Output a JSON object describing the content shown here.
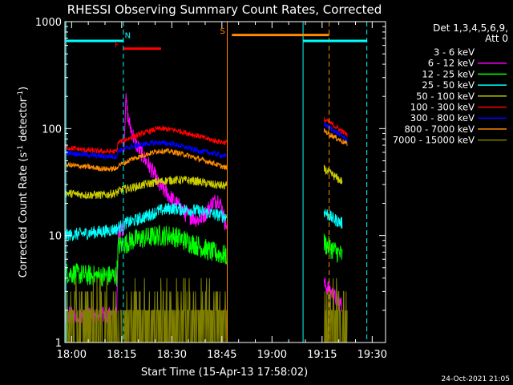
{
  "chart_data": {
    "type": "line",
    "title": "RHESSI Observing Summary Count Rates, Corrected",
    "xlabel": "Start Time (15-Apr-13 17:58:02)",
    "ylabel_main": "Corrected Count Rate (s",
    "ylabel_sup1": "-1",
    "ylabel_mid": " detector",
    "ylabel_sup2": "-1",
    "ylabel_end": ")",
    "footer": "24-Oct-2021 21:05",
    "x_axis": {
      "start_minutes": 0,
      "end_minutes": 96,
      "ticks": [
        {
          "m": 2,
          "label": "18:00"
        },
        {
          "m": 17,
          "label": "18:15"
        },
        {
          "m": 32,
          "label": "18:30"
        },
        {
          "m": 47,
          "label": "18:45"
        },
        {
          "m": 62,
          "label": "19:00"
        },
        {
          "m": 77,
          "label": "19:15"
        },
        {
          "m": 92,
          "label": "19:30"
        }
      ]
    },
    "y_axis": {
      "scale": "log",
      "ylim": [
        1,
        1000
      ],
      "ticks": [
        {
          "v": 1,
          "label": "1"
        },
        {
          "v": 10,
          "label": "10"
        },
        {
          "v": 100,
          "label": "100"
        },
        {
          "v": 1000,
          "label": "1000"
        }
      ]
    },
    "legend": {
      "title_line1": "Det 1,3,4,5,6,9,",
      "title_line2": "Att 0",
      "placement": "top-right outside plot"
    },
    "data_gaps": [
      [
        17.5,
        17.6
      ],
      [
        48.5,
        77.5
      ]
    ],
    "series": [
      {
        "name": "3 - 6 keV",
        "color": "#000000",
        "jitter": 0.05,
        "points": [
          [
            15.5,
            2.5
          ],
          [
            17.5,
            2.5
          ],
          [
            17.6,
            60
          ],
          [
            18.2,
            215
          ],
          [
            19,
            150
          ],
          [
            21,
            95
          ],
          [
            23,
            70
          ],
          [
            25,
            55
          ],
          [
            27,
            45
          ],
          [
            28,
            38
          ],
          [
            30,
            30
          ],
          [
            32,
            24
          ],
          [
            34,
            20
          ],
          [
            36,
            17
          ],
          [
            38,
            15
          ],
          [
            40,
            14
          ],
          [
            42,
            12
          ],
          [
            44,
            16
          ],
          [
            46,
            17
          ],
          [
            47,
            15
          ],
          [
            48,
            13
          ]
        ]
      },
      {
        "name": "6 - 12 keV",
        "color": "#ff00ff",
        "jitter": 0.08,
        "points": [
          [
            0,
            1.8
          ],
          [
            15.5,
            1.8
          ],
          [
            16,
            11
          ],
          [
            17.5,
            12
          ],
          [
            17.6,
            60
          ],
          [
            18.2,
            190
          ],
          [
            19,
            120
          ],
          [
            21,
            75
          ],
          [
            23,
            58
          ],
          [
            25,
            46
          ],
          [
            27,
            36
          ],
          [
            28,
            30
          ],
          [
            30,
            26
          ],
          [
            32,
            22
          ],
          [
            34,
            19
          ],
          [
            36,
            16
          ],
          [
            38,
            15
          ],
          [
            40,
            14
          ],
          [
            42,
            16
          ],
          [
            44,
            20
          ],
          [
            46,
            22
          ],
          [
            47,
            18
          ],
          [
            48,
            13
          ],
          [
            77.5,
            3.5
          ],
          [
            79,
            3.2
          ],
          [
            81,
            2.6
          ],
          [
            83,
            2.2
          ]
        ]
      },
      {
        "name": "12 - 25 keV",
        "color": "#00ff00",
        "jitter": 0.1,
        "points": [
          [
            0,
            4.5
          ],
          [
            8,
            4.2
          ],
          [
            12,
            4.2
          ],
          [
            15.5,
            4.2
          ],
          [
            16,
            8
          ],
          [
            17.5,
            8.2
          ],
          [
            18.5,
            8.5
          ],
          [
            20,
            9
          ],
          [
            24,
            9.5
          ],
          [
            28,
            10
          ],
          [
            32,
            10
          ],
          [
            36,
            9
          ],
          [
            40,
            8
          ],
          [
            44,
            7
          ],
          [
            48,
            6.5
          ],
          [
            77.5,
            8.5
          ],
          [
            80,
            7.5
          ],
          [
            83,
            6.5
          ]
        ]
      },
      {
        "name": "25 - 50 keV",
        "color": "#00ffff",
        "jitter": 0.06,
        "points": [
          [
            0,
            10
          ],
          [
            6,
            10.5
          ],
          [
            12,
            11
          ],
          [
            15.5,
            11.5
          ],
          [
            16,
            12
          ],
          [
            17.5,
            12.5
          ],
          [
            18,
            13
          ],
          [
            20,
            13.5
          ],
          [
            24,
            15
          ],
          [
            28,
            17
          ],
          [
            32,
            18
          ],
          [
            36,
            17.5
          ],
          [
            40,
            17
          ],
          [
            44,
            16
          ],
          [
            48,
            15
          ],
          [
            77.5,
            17
          ],
          [
            80,
            14.5
          ],
          [
            83,
            13
          ]
        ]
      },
      {
        "name": "50 - 100 keV",
        "color": "#cccc00",
        "jitter": 0.04,
        "points": [
          [
            0,
            25
          ],
          [
            6,
            24
          ],
          [
            12,
            24
          ],
          [
            15.5,
            25
          ],
          [
            16,
            26
          ],
          [
            17.5,
            27
          ],
          [
            20,
            28
          ],
          [
            24,
            30
          ],
          [
            28,
            32
          ],
          [
            32,
            33
          ],
          [
            36,
            33
          ],
          [
            40,
            32
          ],
          [
            44,
            30
          ],
          [
            48,
            29
          ],
          [
            77.5,
            42
          ],
          [
            80,
            37
          ],
          [
            83,
            32
          ]
        ]
      },
      {
        "name": "100 - 300 keV",
        "color": "#ff0000",
        "jitter": 0.025,
        "points": [
          [
            0,
            67
          ],
          [
            6,
            63
          ],
          [
            12,
            61
          ],
          [
            15.5,
            61
          ],
          [
            16,
            75
          ],
          [
            17.5,
            77
          ],
          [
            20,
            83
          ],
          [
            24,
            92
          ],
          [
            28,
            100
          ],
          [
            32,
            98
          ],
          [
            36,
            92
          ],
          [
            40,
            85
          ],
          [
            44,
            78
          ],
          [
            48,
            74
          ],
          [
            77.5,
            122
          ],
          [
            80,
            110
          ],
          [
            83,
            94
          ],
          [
            84.5,
            88
          ]
        ]
      },
      {
        "name": "300 - 800 keV",
        "color": "#0000ff",
        "jitter": 0.025,
        "points": [
          [
            0,
            60
          ],
          [
            6,
            57
          ],
          [
            12,
            55
          ],
          [
            15.5,
            55
          ],
          [
            16,
            63
          ],
          [
            17.5,
            64
          ],
          [
            20,
            68
          ],
          [
            24,
            72
          ],
          [
            28,
            74
          ],
          [
            32,
            72
          ],
          [
            36,
            67
          ],
          [
            40,
            62
          ],
          [
            44,
            59
          ],
          [
            48,
            55
          ],
          [
            77.5,
            112
          ],
          [
            80,
            98
          ],
          [
            83,
            85
          ],
          [
            84.5,
            78
          ]
        ]
      },
      {
        "name": "800 - 7000 keV",
        "color": "#ff8c00",
        "jitter": 0.025,
        "points": [
          [
            0,
            46
          ],
          [
            6,
            44
          ],
          [
            12,
            42
          ],
          [
            15.5,
            42
          ],
          [
            16,
            46
          ],
          [
            17.5,
            47
          ],
          [
            20,
            52
          ],
          [
            24,
            57
          ],
          [
            28,
            62
          ],
          [
            32,
            61
          ],
          [
            36,
            57
          ],
          [
            40,
            52
          ],
          [
            44,
            48
          ],
          [
            48,
            43
          ],
          [
            77.5,
            96
          ],
          [
            80,
            86
          ],
          [
            83,
            76
          ],
          [
            84.5,
            72
          ]
        ]
      },
      {
        "name": "7000 - 15000 keV",
        "color": "#808000",
        "jitter": 0,
        "points": [
          [
            0,
            1
          ],
          [
            48.5,
            1
          ],
          [
            77.5,
            1
          ],
          [
            84.5,
            1
          ]
        ]
      }
    ],
    "annotations": {
      "vertical_lines": [
        {
          "m": 0.3,
          "color": "#00ffff",
          "style": "solid"
        },
        {
          "m": 17.5,
          "color": "#00ffff",
          "style": "dashed"
        },
        {
          "m": 48.6,
          "color": "#ff8c00",
          "style": "solid"
        },
        {
          "m": 71.3,
          "color": "#00ffff",
          "style": "solid"
        },
        {
          "m": 79.1,
          "color": "#ff8c00",
          "style": "dashed"
        },
        {
          "m": 90.4,
          "color": "#00ffff",
          "style": "dashed"
        }
      ],
      "bars": [
        {
          "label": "N",
          "color": "#00ffff",
          "x1": 0.3,
          "x2": 17.5,
          "y": 660,
          "label_at": 18.8,
          "label_y": 700
        },
        {
          "label": "",
          "color": "#00ffff",
          "x1": 71.3,
          "x2": 90.4,
          "y": 660,
          "label_at": null,
          "label_y": null
        },
        {
          "label": "F",
          "color": "#ff0000",
          "x1": 17.6,
          "x2": 28.8,
          "y": 560,
          "label_at": 15.6,
          "label_y": 575
        },
        {
          "label": "S",
          "color": "#ff8c00",
          "x1": 50,
          "x2": 79.1,
          "y": 750,
          "label_at": 47.2,
          "label_y": 770
        }
      ]
    }
  }
}
